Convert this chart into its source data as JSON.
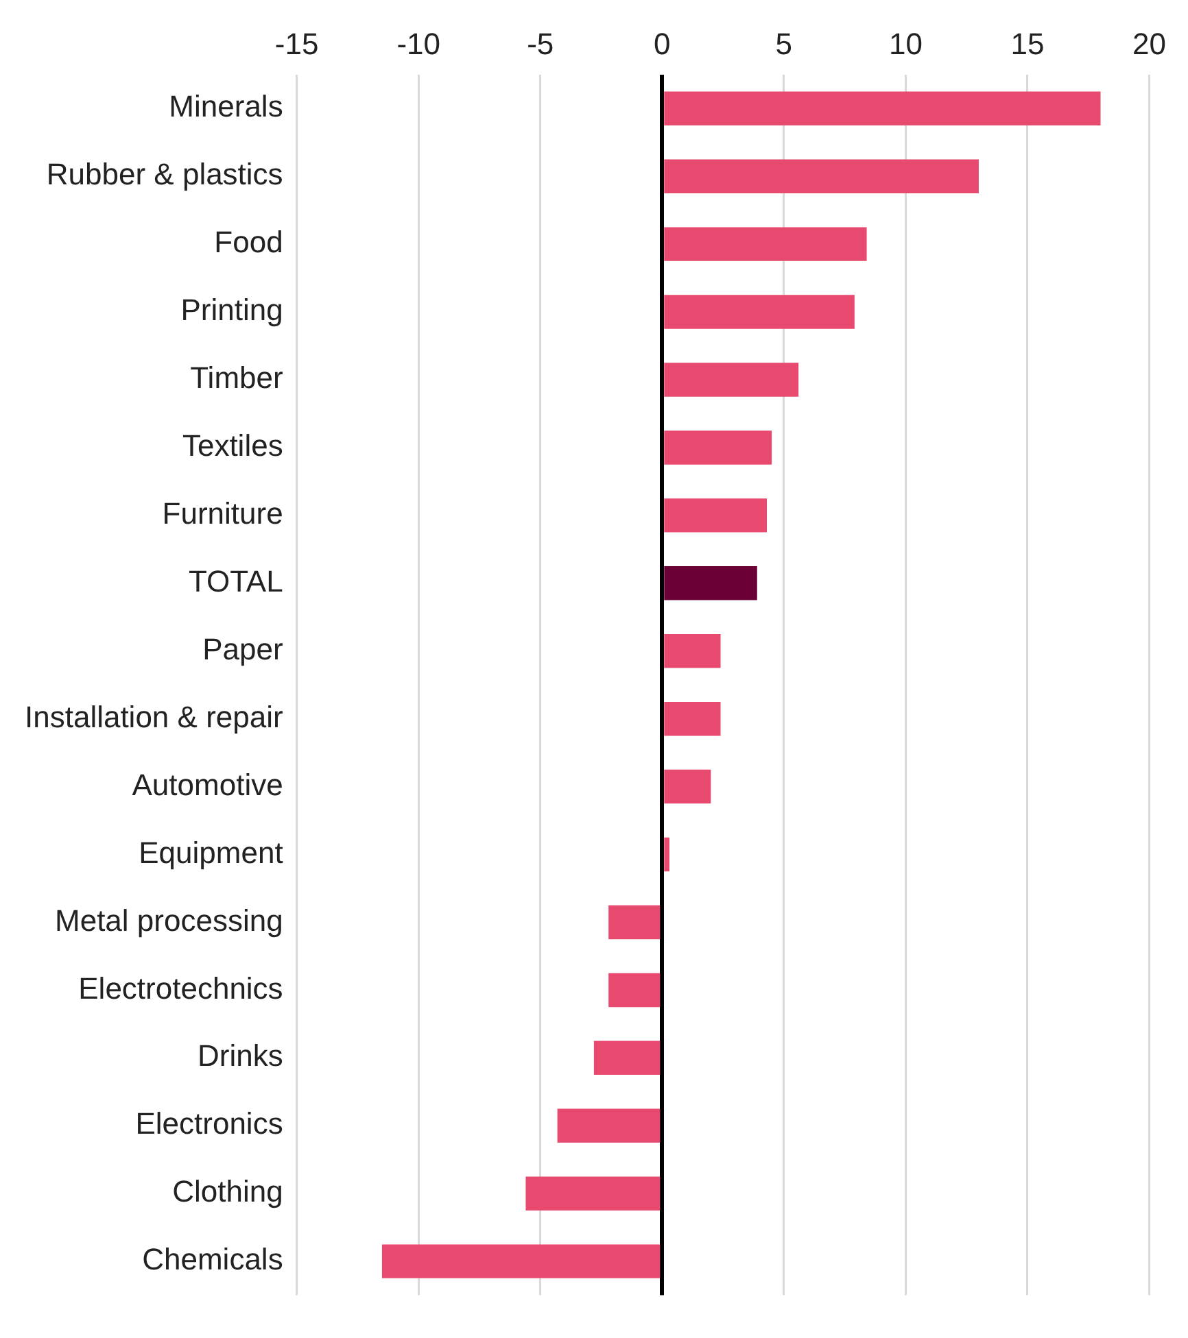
{
  "chart_data": {
    "type": "bar",
    "orientation": "horizontal",
    "categories": [
      "Minerals",
      "Rubber & plastics",
      "Food",
      "Printing",
      "Timber",
      "Textiles",
      "Furniture",
      "TOTAL",
      "Paper",
      "Installation & repair",
      "Automotive",
      "Equipment",
      "Metal processing",
      "Electrotechnics",
      "Drinks",
      "Electronics",
      "Clothing",
      "Chemicals"
    ],
    "values": [
      18.0,
      13.0,
      8.4,
      7.9,
      5.6,
      4.5,
      4.3,
      3.9,
      2.4,
      2.4,
      2.0,
      0.3,
      -2.2,
      -2.2,
      -2.8,
      -4.3,
      -5.6,
      -11.5
    ],
    "colors": [
      "#e84a6f",
      "#e84a6f",
      "#e84a6f",
      "#e84a6f",
      "#e84a6f",
      "#e84a6f",
      "#e84a6f",
      "#6b0037",
      "#e84a6f",
      "#e84a6f",
      "#e84a6f",
      "#e84a6f",
      "#e84a6f",
      "#e84a6f",
      "#e84a6f",
      "#e84a6f",
      "#e84a6f",
      "#e84a6f"
    ],
    "xlim": [
      -15,
      20
    ],
    "xticks": [
      -15,
      -10,
      -5,
      0,
      5,
      10,
      15,
      20
    ],
    "grid": "x",
    "legend": false
  }
}
